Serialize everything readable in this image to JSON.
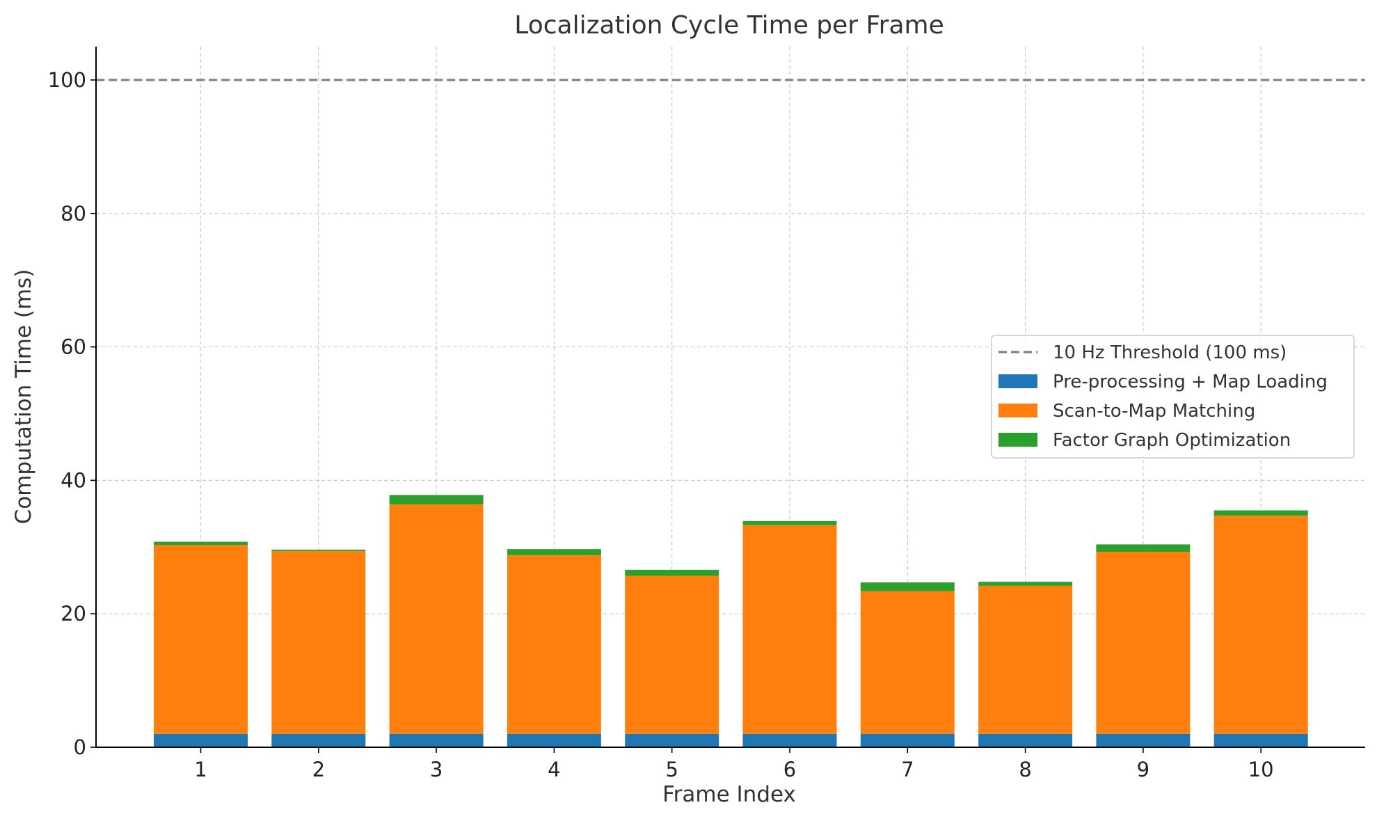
{
  "chart_data": {
    "type": "bar",
    "stacked": true,
    "title": "Localization Cycle Time per Frame",
    "xlabel": "Frame Index",
    "ylabel": "Computation Time (ms)",
    "categories": [
      "1",
      "2",
      "3",
      "4",
      "5",
      "6",
      "7",
      "8",
      "9",
      "10"
    ],
    "ylim": [
      0,
      105
    ],
    "yticks": [
      0,
      20,
      40,
      60,
      80,
      100
    ],
    "grid": true,
    "legend_position": "center-right",
    "series": [
      {
        "name": "Pre-processing + Map Loading",
        "color": "#1f77b4",
        "values": [
          2,
          2,
          2,
          2,
          2,
          2,
          2,
          2,
          2,
          2
        ]
      },
      {
        "name": "Scan-to-Map Matching",
        "color": "#ff7f0e",
        "values": [
          28.3,
          27.4,
          34.4,
          26.8,
          23.7,
          31.3,
          21.4,
          22.2,
          27.3,
          32.7
        ]
      },
      {
        "name": "Factor Graph Optimization",
        "color": "#2ca02c",
        "values": [
          0.5,
          0.2,
          1.4,
          0.9,
          0.9,
          0.6,
          1.3,
          0.6,
          1.1,
          0.8
        ]
      }
    ],
    "threshold": {
      "name": "10 Hz Threshold (100 ms)",
      "value": 100,
      "color": "#808080"
    }
  }
}
